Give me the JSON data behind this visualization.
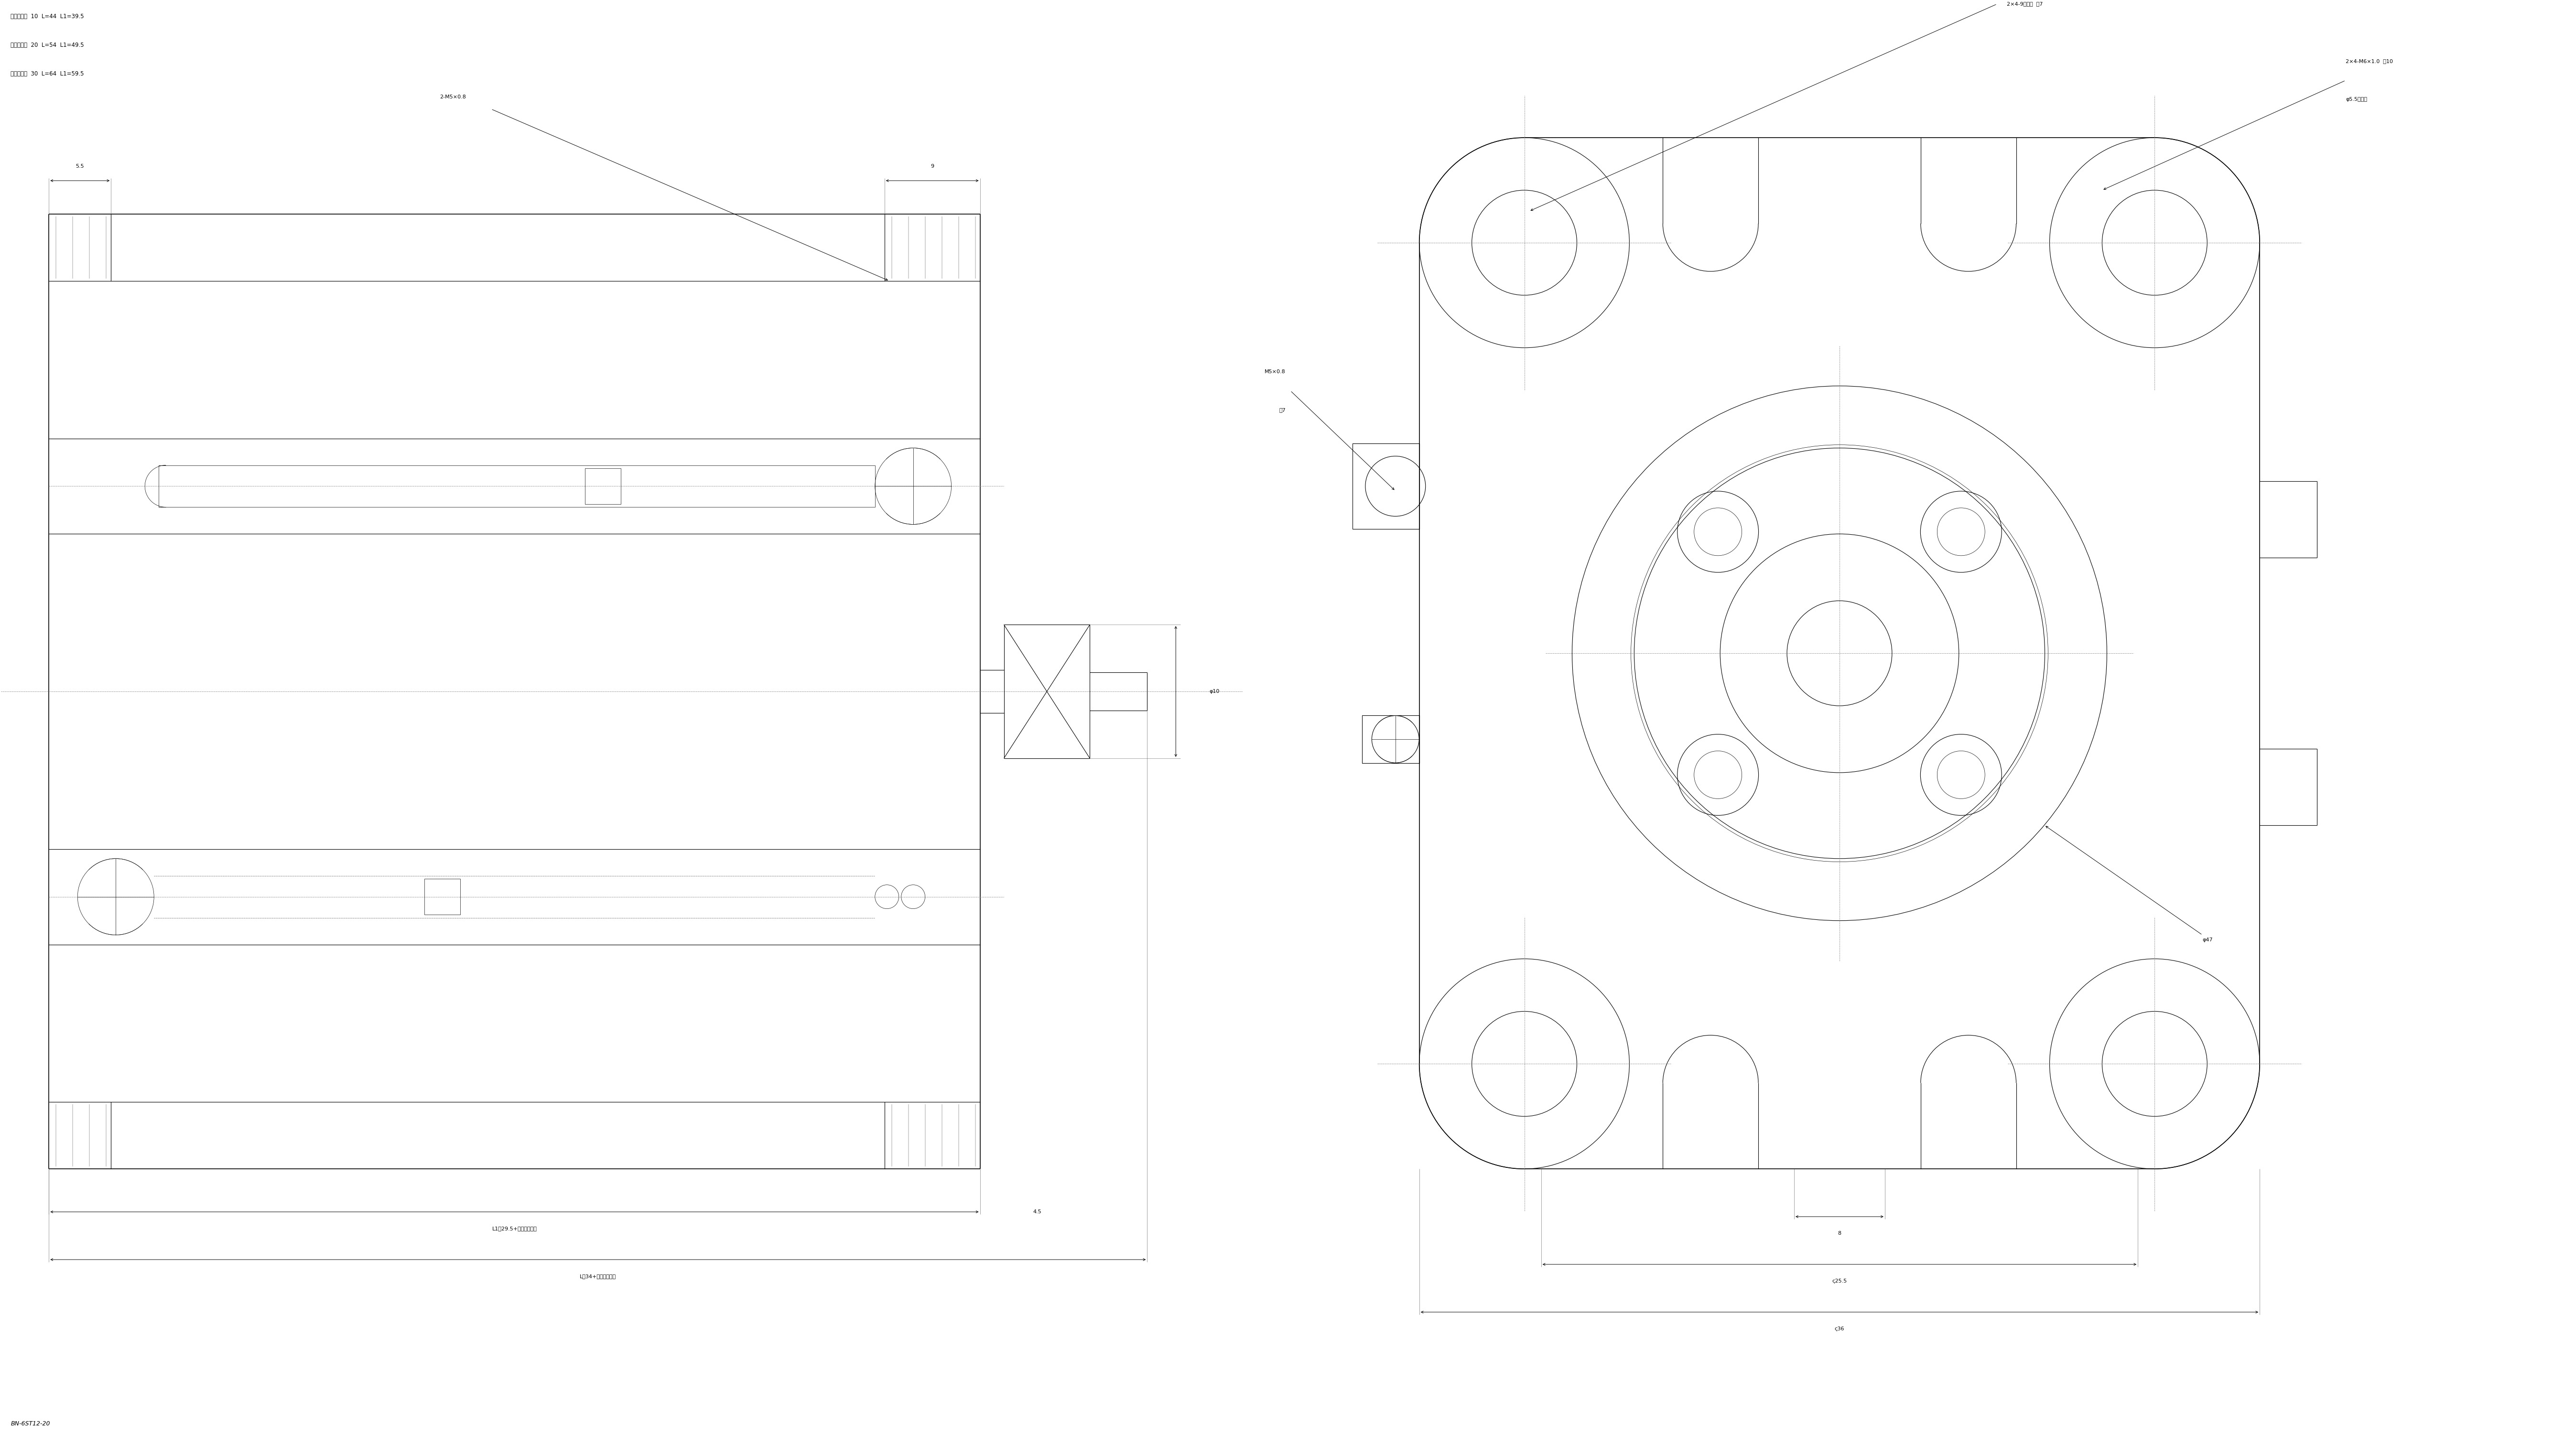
{
  "bg_color": "#ffffff",
  "line_color": "#000000",
  "fig_width": 53.9,
  "fig_height": 30.47,
  "title_lines": [
    "ストローク  10  L=44  L1=39.5",
    "ストローク  20  L=54  L1=49.5",
    "ストローク  30  L=64  L1=59.5"
  ],
  "bottom_label": "BN-6ST12-20",
  "ann_55": "5.5",
  "ann_9": "9",
  "ann_2m5": "2-M5×0.8",
  "ann_phi10": "φ10",
  "ann_l1": "L1（29.5+ストローク）",
  "ann_l": "L（34+ストローク）",
  "ann_45": "4.5",
  "ann_2x4_9": "2×4-9座グリ  深7",
  "ann_m5": "M5×0.8",
  "ann_m5_depth": "深7",
  "ann_2x4_m6": "2×4-M6×1.0  深10",
  "ann_phi55": "φ5.5穴貫通",
  "ann_phi47": "φ47",
  "ann_8": "8",
  "ann_255": "ς25.5",
  "ann_36": "ς36"
}
